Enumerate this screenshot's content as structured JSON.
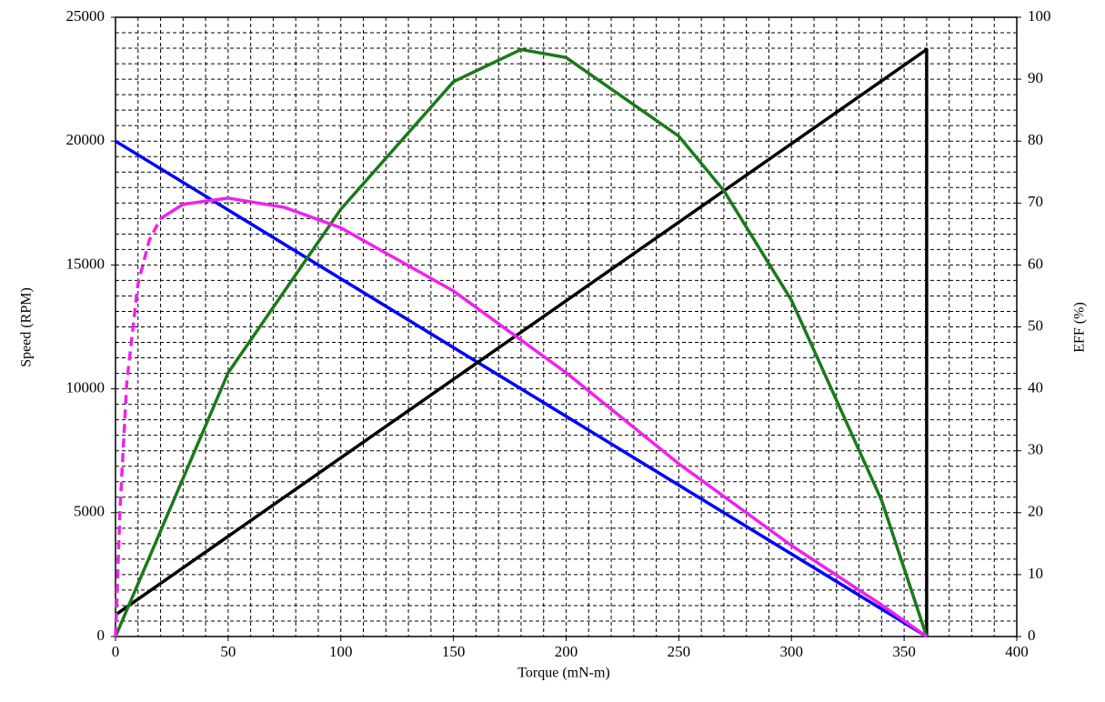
{
  "chart_data": {
    "type": "line",
    "x_label": "Torque (mN-m)",
    "y_label": "Speed (RPM)",
    "y2_label": "EFF (%)",
    "xlim": [
      0,
      400
    ],
    "xticks": [
      0,
      50,
      100,
      150,
      200,
      250,
      300,
      350,
      400
    ],
    "ylim": [
      0,
      25000
    ],
    "yticks": [
      0,
      5000,
      10000,
      15000,
      20000,
      25000
    ],
    "y2lim": [
      0,
      100
    ],
    "y2ticks": [
      0,
      10,
      20,
      30,
      40,
      50,
      60,
      70,
      80,
      90,
      100
    ],
    "grid": true,
    "grid_x_step": 10,
    "grid_y2_step": 2.5,
    "series": [
      {
        "color": "#0000ff",
        "x": [
          0,
          360
        ],
        "values": [
          20000,
          0
        ]
      },
      {
        "color": "#000000",
        "axis": "y2",
        "x": [
          0,
          360,
          360
        ],
        "values": [
          3.5,
          94.8,
          0
        ]
      },
      {
        "color": "#1a7a1a",
        "axis": "y2",
        "x": [
          0,
          50,
          100,
          150,
          180,
          200,
          250,
          270,
          300,
          340,
          360
        ],
        "values": [
          0,
          42.6,
          69,
          89.6,
          94.8,
          93.5,
          80.8,
          72,
          54.3,
          22,
          0
        ]
      },
      {
        "color": "#ee22ee",
        "axis": "y2",
        "dashed": true,
        "x": [
          0,
          2,
          5,
          10,
          15,
          20
        ],
        "values": [
          0,
          20.6,
          41,
          57,
          64,
          67.5
        ]
      },
      {
        "color": "#ee22ee",
        "axis": "y2",
        "x": [
          20,
          30,
          50,
          75,
          100,
          150,
          200,
          250,
          300,
          340,
          360
        ],
        "values": [
          67.5,
          69.8,
          70.8,
          69.3,
          66,
          55.8,
          42.6,
          27.9,
          14.7,
          5.1,
          0
        ]
      }
    ]
  }
}
